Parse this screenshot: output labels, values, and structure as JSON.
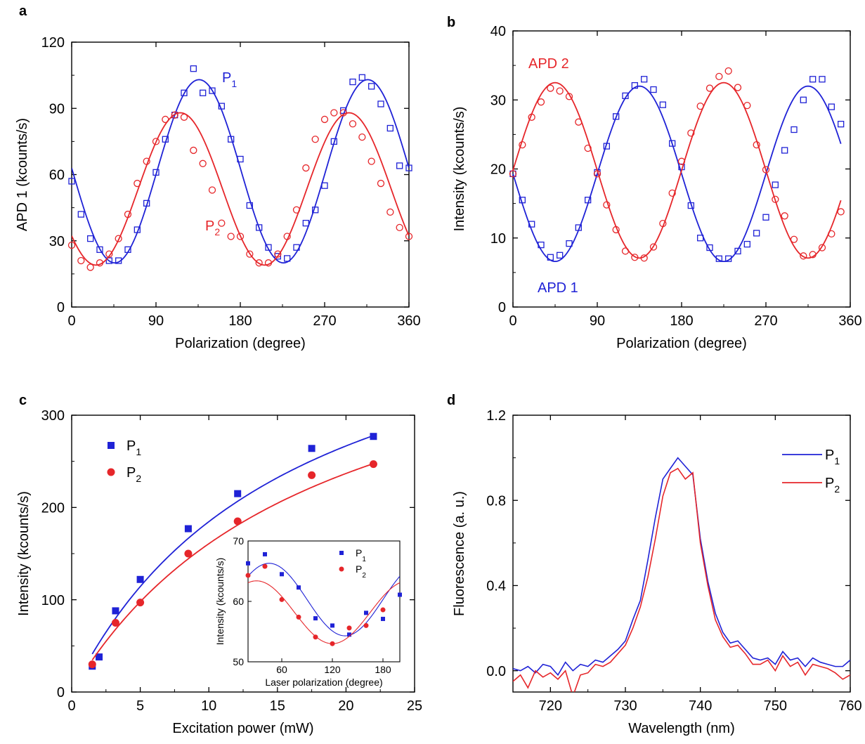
{
  "colors": {
    "blue": "#1f22d6",
    "red": "#e6262a",
    "axis": "#000000"
  },
  "chart_data": [
    {
      "panel_label": "a",
      "type": "scatter",
      "xlabel": "Polarization (degree)",
      "ylabel": "APD 1 (kcounts/s)",
      "xlim": [
        0,
        360
      ],
      "ylim": [
        0,
        120
      ],
      "xticks": [
        0,
        90,
        180,
        270,
        360
      ],
      "yticks": [
        0,
        30,
        60,
        90,
        120
      ],
      "series": [
        {
          "name": "P₁",
          "color": "#1f22d6",
          "marker": "open-square",
          "x": [
            0,
            10,
            20,
            30,
            40,
            50,
            60,
            70,
            80,
            90,
            100,
            110,
            120,
            130,
            140,
            150,
            160,
            170,
            180,
            190,
            200,
            210,
            220,
            230,
            240,
            250,
            260,
            270,
            280,
            290,
            300,
            310,
            320,
            330,
            340,
            350,
            360
          ],
          "y": [
            57,
            42,
            31,
            26,
            21,
            21,
            26,
            35,
            47,
            61,
            76,
            87,
            97,
            108,
            97,
            98,
            91,
            76,
            67,
            46,
            36,
            27,
            23,
            22,
            27,
            38,
            44,
            55,
            75,
            89,
            102,
            104,
            100,
            92,
            81,
            64,
            63
          ],
          "fit": {
            "offset": 61.5,
            "amplitude": 41.5,
            "phase_deg": 136
          }
        },
        {
          "name": "P₂",
          "color": "#e6262a",
          "marker": "open-circle",
          "x": [
            0,
            10,
            20,
            30,
            40,
            50,
            60,
            70,
            80,
            90,
            100,
            110,
            120,
            130,
            140,
            150,
            160,
            170,
            180,
            190,
            200,
            210,
            220,
            230,
            240,
            250,
            260,
            270,
            280,
            290,
            300,
            310,
            320,
            330,
            340,
            350,
            360
          ],
          "y": [
            28,
            21,
            18,
            20,
            24,
            31,
            42,
            56,
            66,
            75,
            85,
            87,
            86,
            71,
            65,
            53,
            38,
            32,
            32,
            24,
            20,
            20,
            24,
            32,
            44,
            63,
            76,
            85,
            88,
            88,
            83,
            77,
            66,
            56,
            43,
            36,
            32
          ],
          "fit": {
            "offset": 53.5,
            "amplitude": 34.5,
            "phase_deg": 116
          }
        }
      ],
      "annotations": [
        "P₁",
        "P₂"
      ]
    },
    {
      "panel_label": "b",
      "type": "scatter",
      "xlabel": "Polarization (degree)",
      "ylabel": "Intensity (kcounts/s)",
      "xlim": [
        0,
        360
      ],
      "ylim": [
        0,
        40
      ],
      "xticks": [
        0,
        90,
        180,
        270,
        360
      ],
      "yticks": [
        0,
        10,
        20,
        30,
        40
      ],
      "series": [
        {
          "name": "APD 1",
          "color": "#1f22d6",
          "marker": "open-square",
          "x": [
            0,
            10,
            20,
            30,
            40,
            50,
            60,
            70,
            80,
            90,
            100,
            110,
            120,
            130,
            140,
            150,
            160,
            170,
            180,
            190,
            200,
            210,
            220,
            230,
            240,
            250,
            260,
            270,
            280,
            290,
            300,
            310,
            320,
            330,
            340,
            350
          ],
          "y": [
            19.3,
            15.5,
            12,
            9,
            7.2,
            7.5,
            9.2,
            11.5,
            15.5,
            19.5,
            23.3,
            27.6,
            30.6,
            32.1,
            33,
            31.5,
            29.3,
            23.7,
            20.3,
            14.7,
            10,
            8.6,
            7,
            7,
            8.1,
            9.1,
            10.7,
            13,
            17.7,
            22.7,
            25.7,
            30,
            33,
            33,
            29,
            26.5
          ],
          "fit": {
            "offset": 19.3,
            "amplitude": 12.7,
            "phase_deg": 135
          }
        },
        {
          "name": "APD 2",
          "color": "#e6262a",
          "marker": "open-circle",
          "x": [
            0,
            10,
            20,
            30,
            40,
            50,
            60,
            70,
            80,
            90,
            100,
            110,
            120,
            130,
            140,
            150,
            160,
            170,
            180,
            190,
            200,
            210,
            220,
            230,
            240,
            250,
            260,
            270,
            280,
            290,
            300,
            310,
            320,
            330,
            340,
            350
          ],
          "y": [
            19.3,
            23.5,
            27.5,
            29.7,
            31.7,
            31.3,
            30.5,
            26.8,
            23,
            19.3,
            14.8,
            11.2,
            8.1,
            7.2,
            7.1,
            8.7,
            12.1,
            16.5,
            21.1,
            25.2,
            29.1,
            31.7,
            33.4,
            34.2,
            31.8,
            29.2,
            23.5,
            19.9,
            15.6,
            13.2,
            9.8,
            7.4,
            7.6,
            8.6,
            10.6,
            13.8
          ],
          "fit": {
            "offset": 19.8,
            "amplitude": 12.7,
            "phase_deg": 45
          }
        }
      ],
      "annotations": [
        "APD 2",
        "APD 1"
      ]
    },
    {
      "panel_label": "c",
      "type": "scatter",
      "xlabel": "Excitation power (mW)",
      "ylabel": "Intensity (kcounts/s)",
      "xlim": [
        0,
        25
      ],
      "ylim": [
        0,
        300
      ],
      "xticks": [
        0,
        5,
        10,
        15,
        20,
        25
      ],
      "yticks": [
        0,
        100,
        200,
        300
      ],
      "legend": "top-left",
      "series": [
        {
          "name": "P₁",
          "color": "#1f22d6",
          "marker": "filled-square",
          "x": [
            1.5,
            2,
            3.2,
            5,
            8.5,
            12.1,
            17.5,
            22
          ],
          "y": [
            28,
            38,
            88,
            122,
            177,
            215,
            264,
            277
          ],
          "fit": {
            "isat": 480,
            "psat": 16
          }
        },
        {
          "name": "P₂",
          "color": "#e6262a",
          "marker": "filled-circle",
          "x": [
            1.5,
            3.2,
            5,
            8.5,
            12.1,
            17.5,
            22
          ],
          "y": [
            30,
            75,
            97,
            150,
            185,
            235,
            247
          ],
          "fit": {
            "isat": 450,
            "psat": 18
          }
        }
      ],
      "inset": {
        "xlabel": "Laser polarization (degree)",
        "ylabel": "Intensity (kcounts/s)",
        "xlim": [
          20,
          200
        ],
        "ylim": [
          50,
          70
        ],
        "xticks": [
          60,
          120,
          180
        ],
        "yticks": [
          50,
          60,
          70
        ],
        "series": [
          {
            "name": "P₁",
            "color": "#1f22d6",
            "x": [
              20,
              40,
              60,
              80,
              100,
              120,
              140,
              160,
              180,
              200
            ],
            "y": [
              66.3,
              67.8,
              64.5,
              62.3,
              57.2,
              56,
              54.5,
              58.1,
              57.1,
              61.1
            ],
            "fit": {
              "offset": 60.3,
              "amplitude": 6,
              "phase_deg": 45
            }
          },
          {
            "name": "P₂",
            "color": "#e6262a",
            "x": [
              20,
              40,
              60,
              80,
              100,
              120,
              140,
              160,
              180
            ],
            "y": [
              64.3,
              65.8,
              60.3,
              57.4,
              54.1,
              53,
              55.6,
              56,
              58.6
            ],
            "fit": {
              "offset": 58.2,
              "amplitude": 5.2,
              "phase_deg": 30
            }
          }
        ]
      }
    },
    {
      "panel_label": "d",
      "type": "line",
      "xlabel": "Wavelength (nm)",
      "ylabel": "Fluorescence (a. u.)",
      "xlim": [
        715,
        760
      ],
      "ylim": [
        -0.1,
        1.2
      ],
      "xticks": [
        720,
        730,
        740,
        750,
        760
      ],
      "yticks": [
        0.0,
        0.4,
        0.8,
        1.2
      ],
      "ytick_labels": [
        "0.0",
        "0.4",
        "0.8",
        "1.2"
      ],
      "legend": "top-right",
      "series": [
        {
          "name": "P₁",
          "color": "#1f22d6",
          "x": [
            715,
            716,
            717,
            718,
            719,
            720,
            721,
            722,
            723,
            724,
            725,
            726,
            727,
            728,
            729,
            730,
            731,
            732,
            733,
            734,
            735,
            736,
            737,
            738,
            739,
            740,
            741,
            742,
            743,
            744,
            745,
            746,
            747,
            748,
            749,
            750,
            751,
            752,
            753,
            754,
            755,
            756,
            757,
            758,
            759,
            760
          ],
          "y": [
            0.01,
            0.0,
            0.02,
            -0.01,
            0.03,
            0.02,
            -0.02,
            0.04,
            0.0,
            0.03,
            0.02,
            0.05,
            0.04,
            0.07,
            0.1,
            0.14,
            0.24,
            0.33,
            0.52,
            0.72,
            0.9,
            0.95,
            1.0,
            0.96,
            0.92,
            0.62,
            0.42,
            0.27,
            0.18,
            0.13,
            0.14,
            0.1,
            0.06,
            0.05,
            0.06,
            0.03,
            0.09,
            0.05,
            0.06,
            0.02,
            0.06,
            0.04,
            0.03,
            0.02,
            0.02,
            0.05
          ]
        },
        {
          "name": "P₂",
          "color": "#e6262a",
          "x": [
            715,
            716,
            717,
            718,
            719,
            720,
            721,
            722,
            723,
            724,
            725,
            726,
            727,
            728,
            729,
            730,
            731,
            732,
            733,
            734,
            735,
            736,
            737,
            738,
            739,
            740,
            741,
            742,
            743,
            744,
            745,
            746,
            747,
            748,
            749,
            750,
            751,
            752,
            753,
            754,
            755,
            756,
            757,
            758,
            759,
            760
          ],
          "y": [
            -0.05,
            -0.02,
            -0.08,
            0.0,
            -0.03,
            -0.01,
            -0.04,
            0.0,
            -0.12,
            -0.02,
            -0.01,
            0.03,
            0.02,
            0.04,
            0.08,
            0.12,
            0.2,
            0.3,
            0.44,
            0.62,
            0.82,
            0.93,
            0.95,
            0.9,
            0.93,
            0.6,
            0.4,
            0.24,
            0.16,
            0.11,
            0.12,
            0.08,
            0.03,
            0.03,
            0.05,
            0.0,
            0.07,
            0.02,
            0.04,
            -0.02,
            0.03,
            0.02,
            0.01,
            -0.01,
            -0.04,
            -0.02
          ]
        }
      ]
    }
  ]
}
